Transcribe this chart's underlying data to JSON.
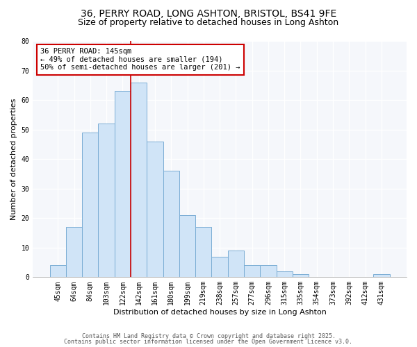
{
  "title1": "36, PERRY ROAD, LONG ASHTON, BRISTOL, BS41 9FE",
  "title2": "Size of property relative to detached houses in Long Ashton",
  "xlabel": "Distribution of detached houses by size in Long Ashton",
  "ylabel": "Number of detached properties",
  "bar_labels": [
    "45sqm",
    "64sqm",
    "84sqm",
    "103sqm",
    "122sqm",
    "142sqm",
    "161sqm",
    "180sqm",
    "199sqm",
    "219sqm",
    "238sqm",
    "257sqm",
    "277sqm",
    "296sqm",
    "315sqm",
    "335sqm",
    "354sqm",
    "373sqm",
    "392sqm",
    "412sqm",
    "431sqm"
  ],
  "bar_values": [
    4,
    17,
    49,
    52,
    63,
    66,
    46,
    36,
    21,
    17,
    7,
    9,
    4,
    4,
    2,
    1,
    0,
    0,
    0,
    0,
    1
  ],
  "bar_color": "#d0e4f7",
  "bar_edge_color": "#7aadd4",
  "vline_color": "#cc0000",
  "vline_x": 5,
  "annotation_text": "36 PERRY ROAD: 145sqm\n← 49% of detached houses are smaller (194)\n50% of semi-detached houses are larger (201) →",
  "annotation_box_facecolor": "white",
  "annotation_box_edgecolor": "#cc0000",
  "ylim": [
    0,
    80
  ],
  "yticks": [
    0,
    10,
    20,
    30,
    40,
    50,
    60,
    70,
    80
  ],
  "footer1": "Contains HM Land Registry data © Crown copyright and database right 2025.",
  "footer2": "Contains public sector information licensed under the Open Government Licence v3.0.",
  "bg_color": "#ffffff",
  "plot_bg_color": "#f5f7fb",
  "grid_color": "#ffffff",
  "title1_fontsize": 10,
  "title2_fontsize": 9,
  "axis_label_fontsize": 8,
  "tick_fontsize": 7,
  "annotation_fontsize": 7.5,
  "footer_fontsize": 6
}
